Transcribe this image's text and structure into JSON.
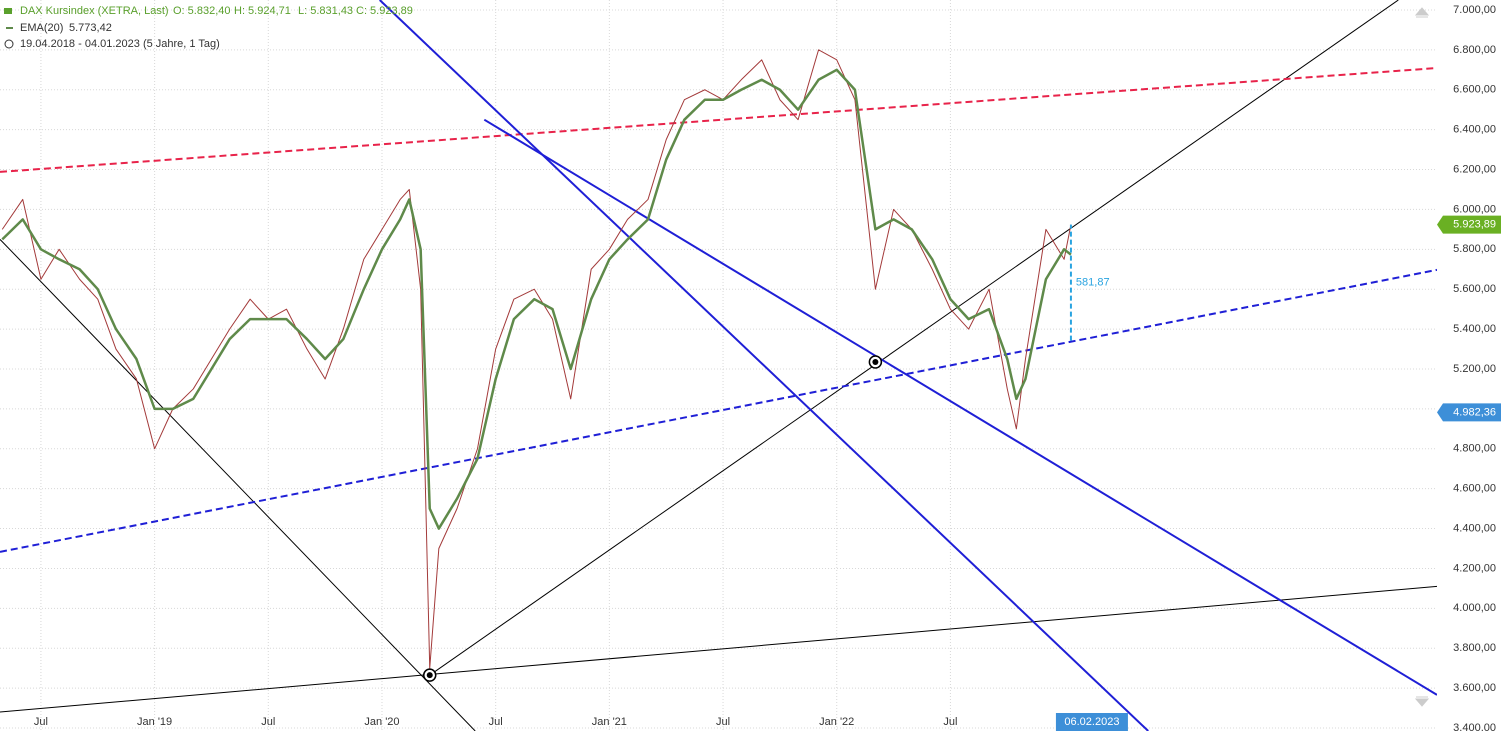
{
  "chart_data": {
    "type": "line",
    "title": "DAX Kursindex (XETRA, Last)",
    "ohlc": [
      "O: 5.832,40",
      "H: 5.924,71",
      "L: 5.831,43",
      "C: 5.923,89"
    ],
    "period": "19.04.2018 - 04.01.2023  (5 Jahre, 1 Tag)",
    "x": [
      2018.33,
      2018.42,
      2018.5,
      2018.58,
      2018.67,
      2018.75,
      2018.83,
      2018.92,
      2019.0,
      2019.08,
      2019.17,
      2019.25,
      2019.33,
      2019.42,
      2019.5,
      2019.58,
      2019.67,
      2019.75,
      2019.83,
      2019.92,
      2020.0,
      2020.08,
      2020.12,
      2020.17,
      2020.21,
      2020.25,
      2020.33,
      2020.42,
      2020.5,
      2020.58,
      2020.67,
      2020.75,
      2020.83,
      2020.92,
      2021.0,
      2021.08,
      2021.17,
      2021.25,
      2021.33,
      2021.42,
      2021.5,
      2021.58,
      2021.67,
      2021.75,
      2021.83,
      2021.92,
      2022.0,
      2022.08,
      2022.17,
      2022.25,
      2022.33,
      2022.42,
      2022.5,
      2022.58,
      2022.67,
      2022.75,
      2022.79,
      2022.83,
      2022.92,
      2023.0,
      2023.03
    ],
    "series": [
      {
        "name": "DAX Kursindex (XETRA, Last)",
        "color": "#a33a3a",
        "width": 1,
        "values": [
          5900,
          6050,
          5650,
          5800,
          5650,
          5550,
          5300,
          5150,
          4800,
          5000,
          5100,
          5250,
          5400,
          5550,
          5450,
          5500,
          5300,
          5150,
          5400,
          5750,
          5900,
          6050,
          6100,
          5600,
          3700,
          4300,
          4500,
          4800,
          5300,
          5550,
          5600,
          5450,
          5050,
          5700,
          5800,
          5950,
          6050,
          6350,
          6550,
          6600,
          6550,
          6650,
          6750,
          6550,
          6450,
          6800,
          6750,
          6550,
          5600,
          6000,
          5900,
          5700,
          5500,
          5400,
          5600,
          5100,
          4900,
          5250,
          5900,
          5750,
          5923.89
        ]
      },
      {
        "name": "EMA(20)",
        "color": "#5f8a4a",
        "width": 2.5,
        "last_label": "5.773,42",
        "values": [
          5850,
          5950,
          5800,
          5750,
          5700,
          5600,
          5400,
          5250,
          5000,
          5000,
          5050,
          5200,
          5350,
          5450,
          5450,
          5450,
          5350,
          5250,
          5350,
          5600,
          5800,
          5950,
          6050,
          5800,
          4500,
          4400,
          4550,
          4750,
          5150,
          5450,
          5550,
          5500,
          5200,
          5550,
          5750,
          5850,
          5950,
          6250,
          6450,
          6550,
          6550,
          6600,
          6650,
          6600,
          6500,
          6650,
          6700,
          6600,
          5900,
          5950,
          5900,
          5750,
          5550,
          5450,
          5500,
          5250,
          5050,
          5150,
          5650,
          5800,
          5773.42
        ]
      }
    ],
    "trendlines": [
      {
        "color": "#000000",
        "width": 1,
        "dashed": false,
        "x": [
          2018.32,
          2020.41
        ],
        "y": [
          5850,
          3385
        ]
      },
      {
        "color": "#000000",
        "width": 1,
        "dashed": false,
        "x": [
          2020.21,
          2024.47
        ],
        "y": [
          3665,
          7050
        ]
      },
      {
        "color": "#000000",
        "width": 1,
        "dashed": false,
        "x": [
          2018.32,
          2024.64
        ],
        "y": [
          3480,
          4110
        ]
      },
      {
        "color": "#e8234a",
        "width": 2,
        "dashed": true,
        "x": [
          2018.32,
          2024.64
        ],
        "y": [
          6188,
          6709
        ]
      },
      {
        "color": "#1f1fd6",
        "width": 2,
        "dashed": true,
        "x": [
          2018.32,
          2024.64
        ],
        "y": [
          4283,
          5697
        ]
      },
      {
        "color": "#1f1fd6",
        "width": 2,
        "dashed": false,
        "x": [
          2019.99,
          2023.37
        ],
        "y": [
          7050,
          3385
        ]
      },
      {
        "color": "#1f1fd6",
        "width": 2,
        "dashed": false,
        "x": [
          2020.45,
          2024.64
        ],
        "y": [
          6450,
          3566
        ]
      }
    ],
    "anchors": {
      "x": [
        2020.21,
        2022.17
      ],
      "y": [
        3665,
        5235
      ]
    },
    "measurement": {
      "x": 2023.03,
      "values": [
        5342.02,
        5923.89
      ],
      "label": "581,87",
      "color": "#29a3e0"
    },
    "price_tags": [
      {
        "value": 5923.89,
        "label": "5.923,89",
        "color": "#6ab023"
      },
      {
        "value": 4982.36,
        "label": "4.982,36",
        "color": "#3d8fd8"
      }
    ],
    "date_tag": {
      "x": 2023.03,
      "label": "06.02.2023",
      "color": "#3d8fd8"
    },
    "xlim": [
      2018.32,
      2024.64
    ],
    "ylim": [
      3385,
      7050
    ],
    "xticks": [
      {
        "value": 2018.5,
        "label": "Jul"
      },
      {
        "value": 2019,
        "label": "Jan '19"
      },
      {
        "value": 2019.5,
        "label": "Jul"
      },
      {
        "value": 2020,
        "label": "Jan '20"
      },
      {
        "value": 2020.5,
        "label": "Jul"
      },
      {
        "value": 2021,
        "label": "Jan '21"
      },
      {
        "value": 2021.5,
        "label": "Jul"
      },
      {
        "value": 2022,
        "label": "Jan '22"
      },
      {
        "value": 2022.5,
        "label": "Jul"
      }
    ],
    "yticks": [
      {
        "value": 3400,
        "label": "3.400,00"
      },
      {
        "value": 3600,
        "label": "3.600,00"
      },
      {
        "value": 3800,
        "label": "3.800,00"
      },
      {
        "value": 4000,
        "label": "4.000,00"
      },
      {
        "value": 4200,
        "label": "4.200,00"
      },
      {
        "value": 4400,
        "label": "4.400,00"
      },
      {
        "value": 4600,
        "label": "4.600,00"
      },
      {
        "value": 4800,
        "label": "4.800,00"
      },
      {
        "value": 5000,
        "label": "5.000,00"
      },
      {
        "value": 5200,
        "label": "5.200,00"
      },
      {
        "value": 5400,
        "label": "5.400,00"
      },
      {
        "value": 5600,
        "label": "5.600,00"
      },
      {
        "value": 5800,
        "label": "5.800,00"
      },
      {
        "value": 6000,
        "label": "6.000,00"
      },
      {
        "value": 6200,
        "label": "6.200,00"
      },
      {
        "value": 6400,
        "label": "6.400,00"
      },
      {
        "value": 6600,
        "label": "6.600,00"
      },
      {
        "value": 6800,
        "label": "6.800,00"
      },
      {
        "value": 7000,
        "label": "7.000,00"
      }
    ],
    "grid": true
  }
}
